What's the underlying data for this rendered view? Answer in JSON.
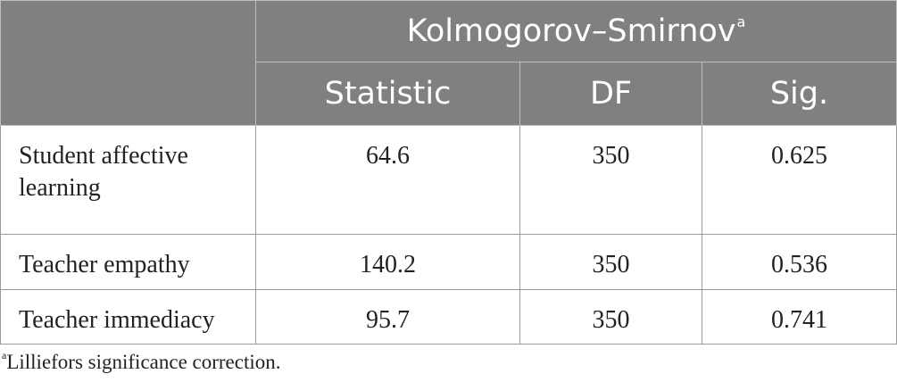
{
  "table": {
    "group_header": "Kolmogorov–Smirnov",
    "group_header_sup": "a",
    "columns": [
      "Statistic",
      "DF",
      "Sig."
    ],
    "rows": [
      {
        "label": "Student affective learning",
        "statistic": "64.6",
        "df": "350",
        "sig": "0.625"
      },
      {
        "label": "Teacher empathy",
        "statistic": "140.2",
        "df": "350",
        "sig": "0.536"
      },
      {
        "label": "Teacher immediacy",
        "statistic": "95.7",
        "df": "350",
        "sig": "0.741"
      }
    ]
  },
  "footnote": {
    "marker": "a",
    "text": "Lilliefors significance correction."
  }
}
